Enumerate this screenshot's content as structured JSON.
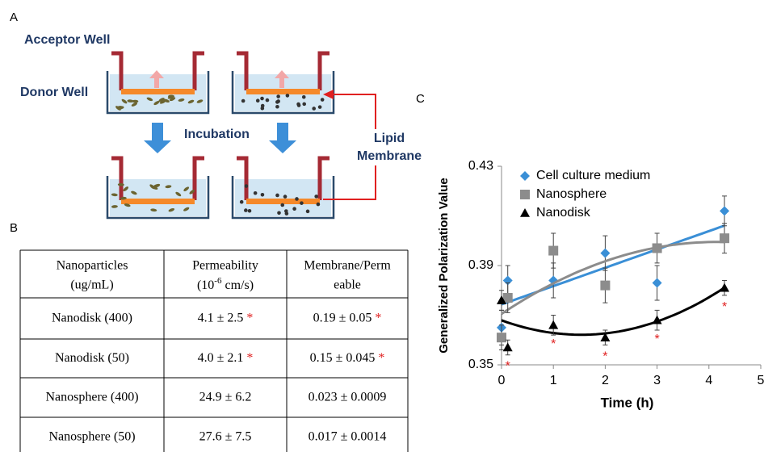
{
  "panels": {
    "a": "A",
    "b": "B",
    "c": "C"
  },
  "diagram": {
    "acceptor_label": "Acceptor Well",
    "donor_label": "Donor Well",
    "step_label": "Incubation",
    "membrane_label": [
      "Lipid",
      "Membrane"
    ]
  },
  "table": {
    "header": [
      [
        "Nanoparticles",
        "(ug/mL)"
      ],
      [
        "Permeability",
        {
          "pre": "(10",
          "sup": "-6",
          "post": " cm/s)"
        }
      ],
      [
        "Membrane/Perm",
        "eable"
      ]
    ],
    "rows": [
      [
        {
          "text": "Nanodisk (400)"
        },
        {
          "text": "4.1 ± 2.5",
          "mark": "*"
        },
        {
          "text": "0.19 ± 0.05",
          "mark": "*"
        }
      ],
      [
        {
          "text": "Nanodisk (50)"
        },
        {
          "text": "4.0 ± 2.1",
          "mark": "*"
        },
        {
          "text": "0.15 ± 0.045",
          "mark": "*"
        }
      ],
      [
        {
          "text": "Nanosphere (400)"
        },
        {
          "text": "24.9 ± 6.2"
        },
        {
          "text": "0.023 ± 0.0009"
        }
      ],
      [
        {
          "text": "Nanosphere (50)"
        },
        {
          "text": "27.6 ± 7.5"
        },
        {
          "text": "0.017 ± 0.0014"
        }
      ]
    ]
  },
  "chart_data": {
    "type": "scatter",
    "x_label": "Time (h)",
    "y_label": "Generalized Polarization Value",
    "xlim": [
      0,
      5
    ],
    "xticks": [
      0,
      1,
      2,
      3,
      4,
      5
    ],
    "ylim": [
      0.35,
      0.43
    ],
    "yticks": [
      0.35,
      0.39,
      0.43
    ],
    "legend": "upper left",
    "series": [
      {
        "name": "Cell culture medium",
        "color": "#3a8fd6",
        "marker": "diamond",
        "trend": 1,
        "x": [
          0,
          0.12,
          1,
          2,
          3,
          4.3
        ],
        "values": [
          0.365,
          0.384,
          0.384,
          0.395,
          0.383,
          0.412
        ],
        "errors": [
          0.007,
          0.006,
          0.007,
          0.007,
          0.007,
          0.006
        ]
      },
      {
        "name": "Nanosphere",
        "color": "#8c8c8c",
        "marker": "square",
        "trend": 2,
        "x": [
          0,
          0.12,
          1,
          2,
          3,
          4.3
        ],
        "values": [
          0.361,
          0.377,
          0.396,
          0.382,
          0.397,
          0.401
        ],
        "errors": [
          0.005,
          0.006,
          0.007,
          0.007,
          0.006,
          0.006
        ]
      },
      {
        "name": "Nanodisk",
        "color": "#000000",
        "marker": "triangle",
        "trend": 2,
        "x": [
          0,
          0.12,
          1,
          2,
          3,
          4.3
        ],
        "values": [
          0.376,
          0.357,
          0.366,
          0.361,
          0.368,
          0.381
        ],
        "errors": [
          0.004,
          0.003,
          0.004,
          0.003,
          0.004,
          0.003
        ],
        "significance": [
          null,
          "*",
          "*",
          "*",
          "*",
          "*"
        ]
      }
    ]
  }
}
